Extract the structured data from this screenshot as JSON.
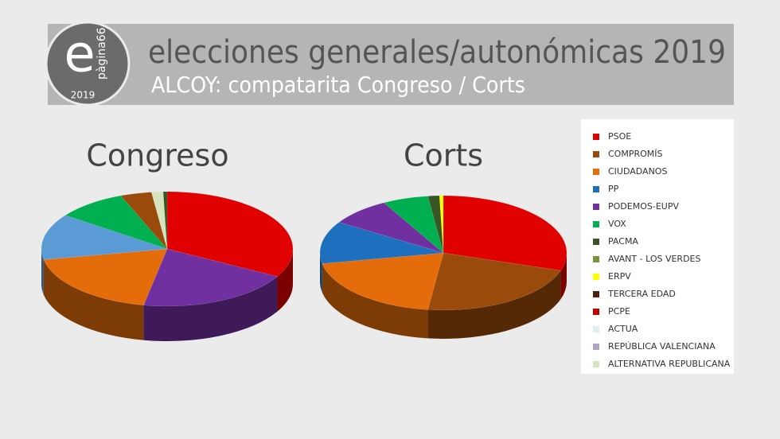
{
  "header": {
    "logo_letter": "e",
    "logo_text": "pàgina66",
    "logo_year": "2019",
    "title": "elecciones generales/autonómicas 2019",
    "subtitle": "ALCOY: compatarita Congreso / Corts"
  },
  "legend": {
    "items": [
      {
        "label": "PSOE",
        "color": "#e00000"
      },
      {
        "label": "COMPROMÍS",
        "color": "#9a4a0a"
      },
      {
        "label": "CIUDADANOS",
        "color": "#e46c0a"
      },
      {
        "label": "PP",
        "color": "#1f6fbf"
      },
      {
        "label": "PODEMOS-EUPV",
        "color": "#7030a0"
      },
      {
        "label": "VOX",
        "color": "#00b050"
      },
      {
        "label": "PACMA",
        "color": "#375623"
      },
      {
        "label": "AVANT - LOS VERDES",
        "color": "#77933c"
      },
      {
        "label": "ERPV",
        "color": "#ffff00"
      },
      {
        "label": "TERCERA EDAD",
        "color": "#4f2111"
      },
      {
        "label": "PCPE",
        "color": "#c00000"
      },
      {
        "label": "ACTUA",
        "color": "#dbeef4"
      },
      {
        "label": "REPÚBLICA VALENCIANA",
        "color": "#b3a2c7"
      },
      {
        "label": "ALTERNATIVA REPUBLICANA",
        "color": "#d7e4bd"
      }
    ]
  },
  "chart_data": [
    {
      "type": "pie",
      "title": "Congreso",
      "categories": [
        "PSOE",
        "PODEMOS-EUPV",
        "CIUDADANOS",
        "PP",
        "VOX",
        "COMPROMÍS",
        "ALTERNATIVA REPUBLICANA",
        "PACMA"
      ],
      "values": [
        33,
        20,
        19,
        13,
        9,
        4,
        1.5,
        0.5
      ],
      "colors": [
        "#e00000",
        "#7030a0",
        "#e46c0a",
        "#5b9bd5",
        "#00b050",
        "#9a4a0a",
        "#d7e4bd",
        "#375623"
      ]
    },
    {
      "type": "pie",
      "title": "Corts",
      "categories": [
        "PSOE",
        "COMPROMÍS",
        "CIUDADANOS",
        "PP",
        "PODEMOS-EUPV",
        "VOX",
        "PACMA",
        "ERPV"
      ],
      "values": [
        30,
        22,
        20,
        12,
        8,
        6,
        1.5,
        0.5
      ],
      "colors": [
        "#e00000",
        "#9a4a0a",
        "#e46c0a",
        "#1f6fbf",
        "#7030a0",
        "#00b050",
        "#375623",
        "#ffff00"
      ]
    }
  ]
}
